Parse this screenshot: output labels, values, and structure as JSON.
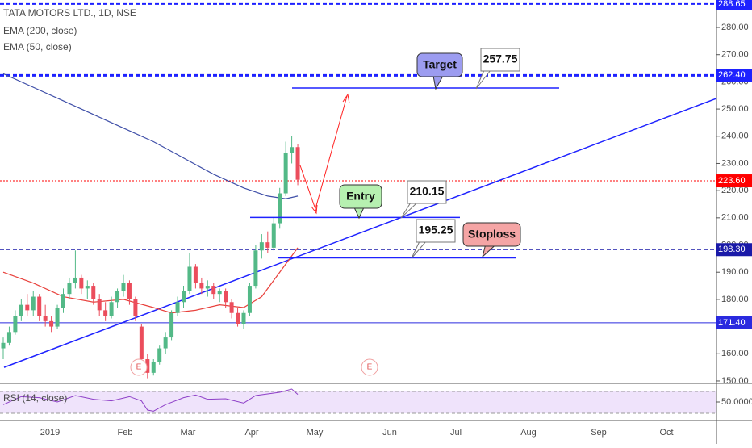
{
  "chart_data": {
    "type": "candlestick",
    "title": "TATA MOTORS LTD., 1D, NSE",
    "indicators": [
      "EMA (200, close)",
      "EMA (50, close)"
    ],
    "up_color": "#53b987",
    "down_color": "#eb4d5c",
    "ohlc": [
      [
        162,
        166,
        158,
        164
      ],
      [
        164,
        170,
        163,
        168
      ],
      [
        168,
        176,
        167,
        174
      ],
      [
        174,
        180,
        172,
        178
      ],
      [
        178,
        182,
        174,
        176
      ],
      [
        176,
        183,
        174,
        181
      ],
      [
        181,
        182,
        172,
        174
      ],
      [
        174,
        178,
        170,
        172
      ],
      [
        172,
        174,
        168,
        170
      ],
      [
        170,
        178,
        169,
        177
      ],
      [
        177,
        184,
        175,
        182
      ],
      [
        182,
        188,
        180,
        186
      ],
      [
        186,
        198,
        184,
        188
      ],
      [
        188,
        189,
        182,
        184
      ],
      [
        184,
        187,
        180,
        185
      ],
      [
        185,
        186,
        178,
        180
      ],
      [
        180,
        182,
        174,
        176
      ],
      [
        176,
        179,
        172,
        174
      ],
      [
        174,
        181,
        173,
        179
      ],
      [
        179,
        184,
        177,
        183
      ],
      [
        183,
        189,
        181,
        186
      ],
      [
        186,
        187,
        178,
        180
      ],
      [
        180,
        181,
        172,
        174
      ],
      [
        170,
        171,
        156,
        158
      ],
      [
        158,
        160,
        151,
        153
      ],
      [
        153,
        158,
        152,
        157
      ],
      [
        157,
        163,
        156,
        162
      ],
      [
        162,
        168,
        160,
        166
      ],
      [
        166,
        176,
        165,
        175
      ],
      [
        175,
        181,
        174,
        179
      ],
      [
        179,
        185,
        177,
        183
      ],
      [
        183,
        197,
        182,
        192
      ],
      [
        192,
        193,
        184,
        186
      ],
      [
        186,
        188,
        182,
        184
      ],
      [
        184,
        187,
        181,
        185
      ],
      [
        185,
        186,
        180,
        182
      ],
      [
        182,
        184,
        179,
        183
      ],
      [
        183,
        184,
        177,
        179
      ],
      [
        179,
        180,
        173,
        175
      ],
      [
        175,
        177,
        170,
        171
      ],
      [
        171,
        176,
        169,
        175
      ],
      [
        175,
        186,
        174,
        185
      ],
      [
        185,
        200,
        184,
        198
      ],
      [
        198,
        204,
        195,
        201
      ],
      [
        201,
        205,
        197,
        199
      ],
      [
        199,
        210,
        198,
        208
      ],
      [
        208,
        221,
        206,
        219
      ],
      [
        219,
        238,
        218,
        234
      ],
      [
        234,
        240,
        230,
        236
      ],
      [
        236,
        237,
        222,
        224
      ]
    ],
    "series": [
      {
        "name": "EMA (200, close)",
        "color": "#3f4fa8",
        "x": [
          0,
          5,
          10,
          15,
          20,
          25,
          30,
          35,
          40,
          44,
          47,
          49
        ],
        "values": [
          263,
          258,
          253,
          248,
          243,
          238,
          232,
          226,
          221,
          218,
          217,
          218
        ]
      },
      {
        "name": "EMA (50, close)",
        "color": "#e8413c",
        "x": [
          0,
          5,
          10,
          15,
          20,
          25,
          28,
          32,
          36,
          40,
          43,
          46,
          49
        ],
        "values": [
          190,
          186,
          181,
          179,
          180,
          177,
          175,
          176,
          178,
          177,
          181,
          190,
          199
        ]
      }
    ],
    "ylim": [
      149.1,
      290.1
    ],
    "yticks": [
      {
        "value": 150,
        "label": "150.00"
      },
      {
        "value": 160,
        "label": "160.00"
      },
      {
        "value": 170,
        "label": "170.00"
      },
      {
        "value": 180,
        "label": "180.00"
      },
      {
        "value": 190,
        "label": "190.00"
      },
      {
        "value": 200,
        "label": "200.00"
      },
      {
        "value": 210,
        "label": "210.00"
      },
      {
        "value": 220,
        "label": "220.00"
      },
      {
        "value": 230,
        "label": "230.00"
      },
      {
        "value": 240,
        "label": "240.00"
      },
      {
        "value": 250,
        "label": "250.00"
      },
      {
        "value": 260,
        "label": "260.00"
      },
      {
        "value": 270,
        "label": "270.00"
      },
      {
        "value": 280,
        "label": "280.00"
      }
    ],
    "levels": [
      {
        "value": 288.65,
        "color": "#1e22ff",
        "style": "dashed",
        "width": 2
      },
      {
        "value": 262.4,
        "label": "262.40",
        "color": "#1e22ff",
        "style": "dashed",
        "width": 3
      },
      {
        "value": 223.6,
        "label": "223.60",
        "color": "#ff0000",
        "style": "dotted",
        "width": 1
      },
      {
        "value": 198.3,
        "label": "198.30",
        "color": "#1a1aa8",
        "style": "dashed",
        "width": 1
      },
      {
        "value": 171.4,
        "label": "171.40",
        "color": "#2a2adf",
        "style": "solid",
        "width": 1
      }
    ],
    "trendline": [
      155,
      253.9
    ],
    "setups": [
      {
        "text": "Target",
        "value": 257.75,
        "color": "#9c9cf0"
      },
      {
        "text": "Entry",
        "value": 210.15,
        "color": "#b6f0b0"
      },
      {
        "text": "Stoploss",
        "value": 195.25,
        "color": "#f5a5a5"
      }
    ],
    "events": [
      "E",
      "E"
    ],
    "x_labels": [
      "2019",
      "Feb",
      "Mar",
      "Apr",
      "May",
      "Jun",
      "Jul",
      "Aug",
      "Sep",
      "Oct"
    ],
    "rsi": {
      "name": "RSI (14, close)",
      "color": "#8e3fc8",
      "ylim": [
        17,
        83
      ],
      "yticks": [
        {
          "value": 50,
          "label": "50.0000"
        }
      ],
      "x": [
        0,
        3,
        6,
        9,
        12,
        15,
        18,
        21,
        23,
        24,
        25,
        27,
        30,
        32,
        34,
        37,
        40,
        42,
        44,
        46,
        48,
        49
      ],
      "values": [
        45,
        60,
        58,
        50,
        62,
        55,
        52,
        60,
        52,
        35,
        33,
        45,
        58,
        63,
        55,
        56,
        48,
        62,
        65,
        68,
        74,
        64
      ]
    }
  }
}
